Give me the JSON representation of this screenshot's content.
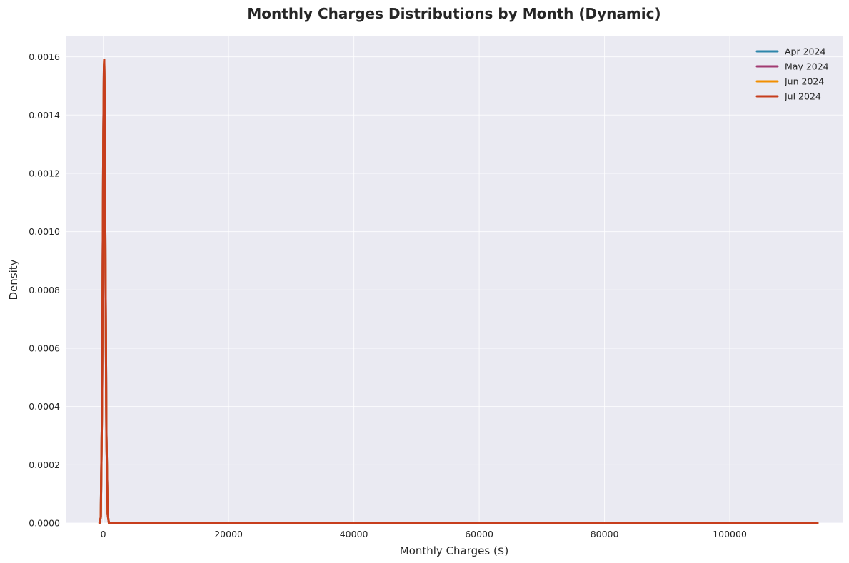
{
  "chart_data": {
    "type": "line",
    "title": "Monthly Charges Distributions by Month (Dynamic)",
    "xlabel": "Monthly Charges ($)",
    "ylabel": "Density",
    "xlim": [
      -6000,
      118000
    ],
    "ylim": [
      0,
      0.00167
    ],
    "xticks": [
      0,
      20000,
      40000,
      60000,
      80000,
      100000
    ],
    "xtick_labels": [
      "0",
      "20000",
      "40000",
      "60000",
      "80000",
      "100000"
    ],
    "yticks": [
      0,
      0.0002,
      0.0004,
      0.0006,
      0.0008,
      0.001,
      0.0012,
      0.0014,
      0.0016
    ],
    "ytick_labels": [
      "0.0000",
      "0.0002",
      "0.0004",
      "0.0006",
      "0.0008",
      "0.0010",
      "0.0012",
      "0.0014",
      "0.0016"
    ],
    "grid": true,
    "legend_position": "top-right",
    "series": [
      {
        "name": "Apr 2024",
        "color": "#2e86ab",
        "x": [
          -600,
          -400,
          -200,
          0,
          100,
          150,
          200,
          300,
          500,
          700,
          900,
          1500,
          5000,
          20000,
          40000,
          60000,
          80000,
          100000,
          114000
        ],
        "y": [
          0,
          2e-05,
          0.0004,
          0.0013,
          0.00155,
          0.00158,
          0.0015,
          0.0011,
          0.0003,
          3e-05,
          0,
          0,
          0,
          0,
          0,
          0,
          0,
          0,
          0
        ]
      },
      {
        "name": "May 2024",
        "color": "#a23b72",
        "x": [
          -600,
          -400,
          -200,
          0,
          100,
          150,
          200,
          300,
          500,
          700,
          900,
          1500,
          5000,
          20000,
          40000,
          60000,
          80000,
          100000,
          114000
        ],
        "y": [
          0,
          2e-05,
          0.0004,
          0.0013,
          0.00156,
          0.00158,
          0.0015,
          0.0011,
          0.0003,
          3e-05,
          0,
          0,
          0,
          0,
          0,
          0,
          0,
          0,
          0
        ]
      },
      {
        "name": "Jun 2024",
        "color": "#f18f01",
        "x": [
          -600,
          -400,
          -200,
          0,
          100,
          150,
          200,
          300,
          500,
          700,
          900,
          1500,
          5000,
          20000,
          40000,
          60000,
          80000,
          100000,
          114000
        ],
        "y": [
          0,
          2e-05,
          0.0004,
          0.0013,
          0.00156,
          0.00159,
          0.0015,
          0.0011,
          0.0003,
          3e-05,
          0,
          0,
          0,
          0,
          0,
          0,
          0,
          0,
          0
        ]
      },
      {
        "name": "Jul 2024",
        "color": "#c73e1d",
        "x": [
          -600,
          -400,
          -200,
          0,
          100,
          150,
          200,
          300,
          500,
          700,
          900,
          1500,
          5000,
          20000,
          40000,
          60000,
          80000,
          100000,
          114000
        ],
        "y": [
          0,
          2e-05,
          0.0004,
          0.0013,
          0.00156,
          0.00159,
          0.0015,
          0.0011,
          0.0003,
          3e-05,
          0,
          0,
          0,
          0,
          0,
          0,
          0,
          0,
          0
        ]
      }
    ]
  }
}
